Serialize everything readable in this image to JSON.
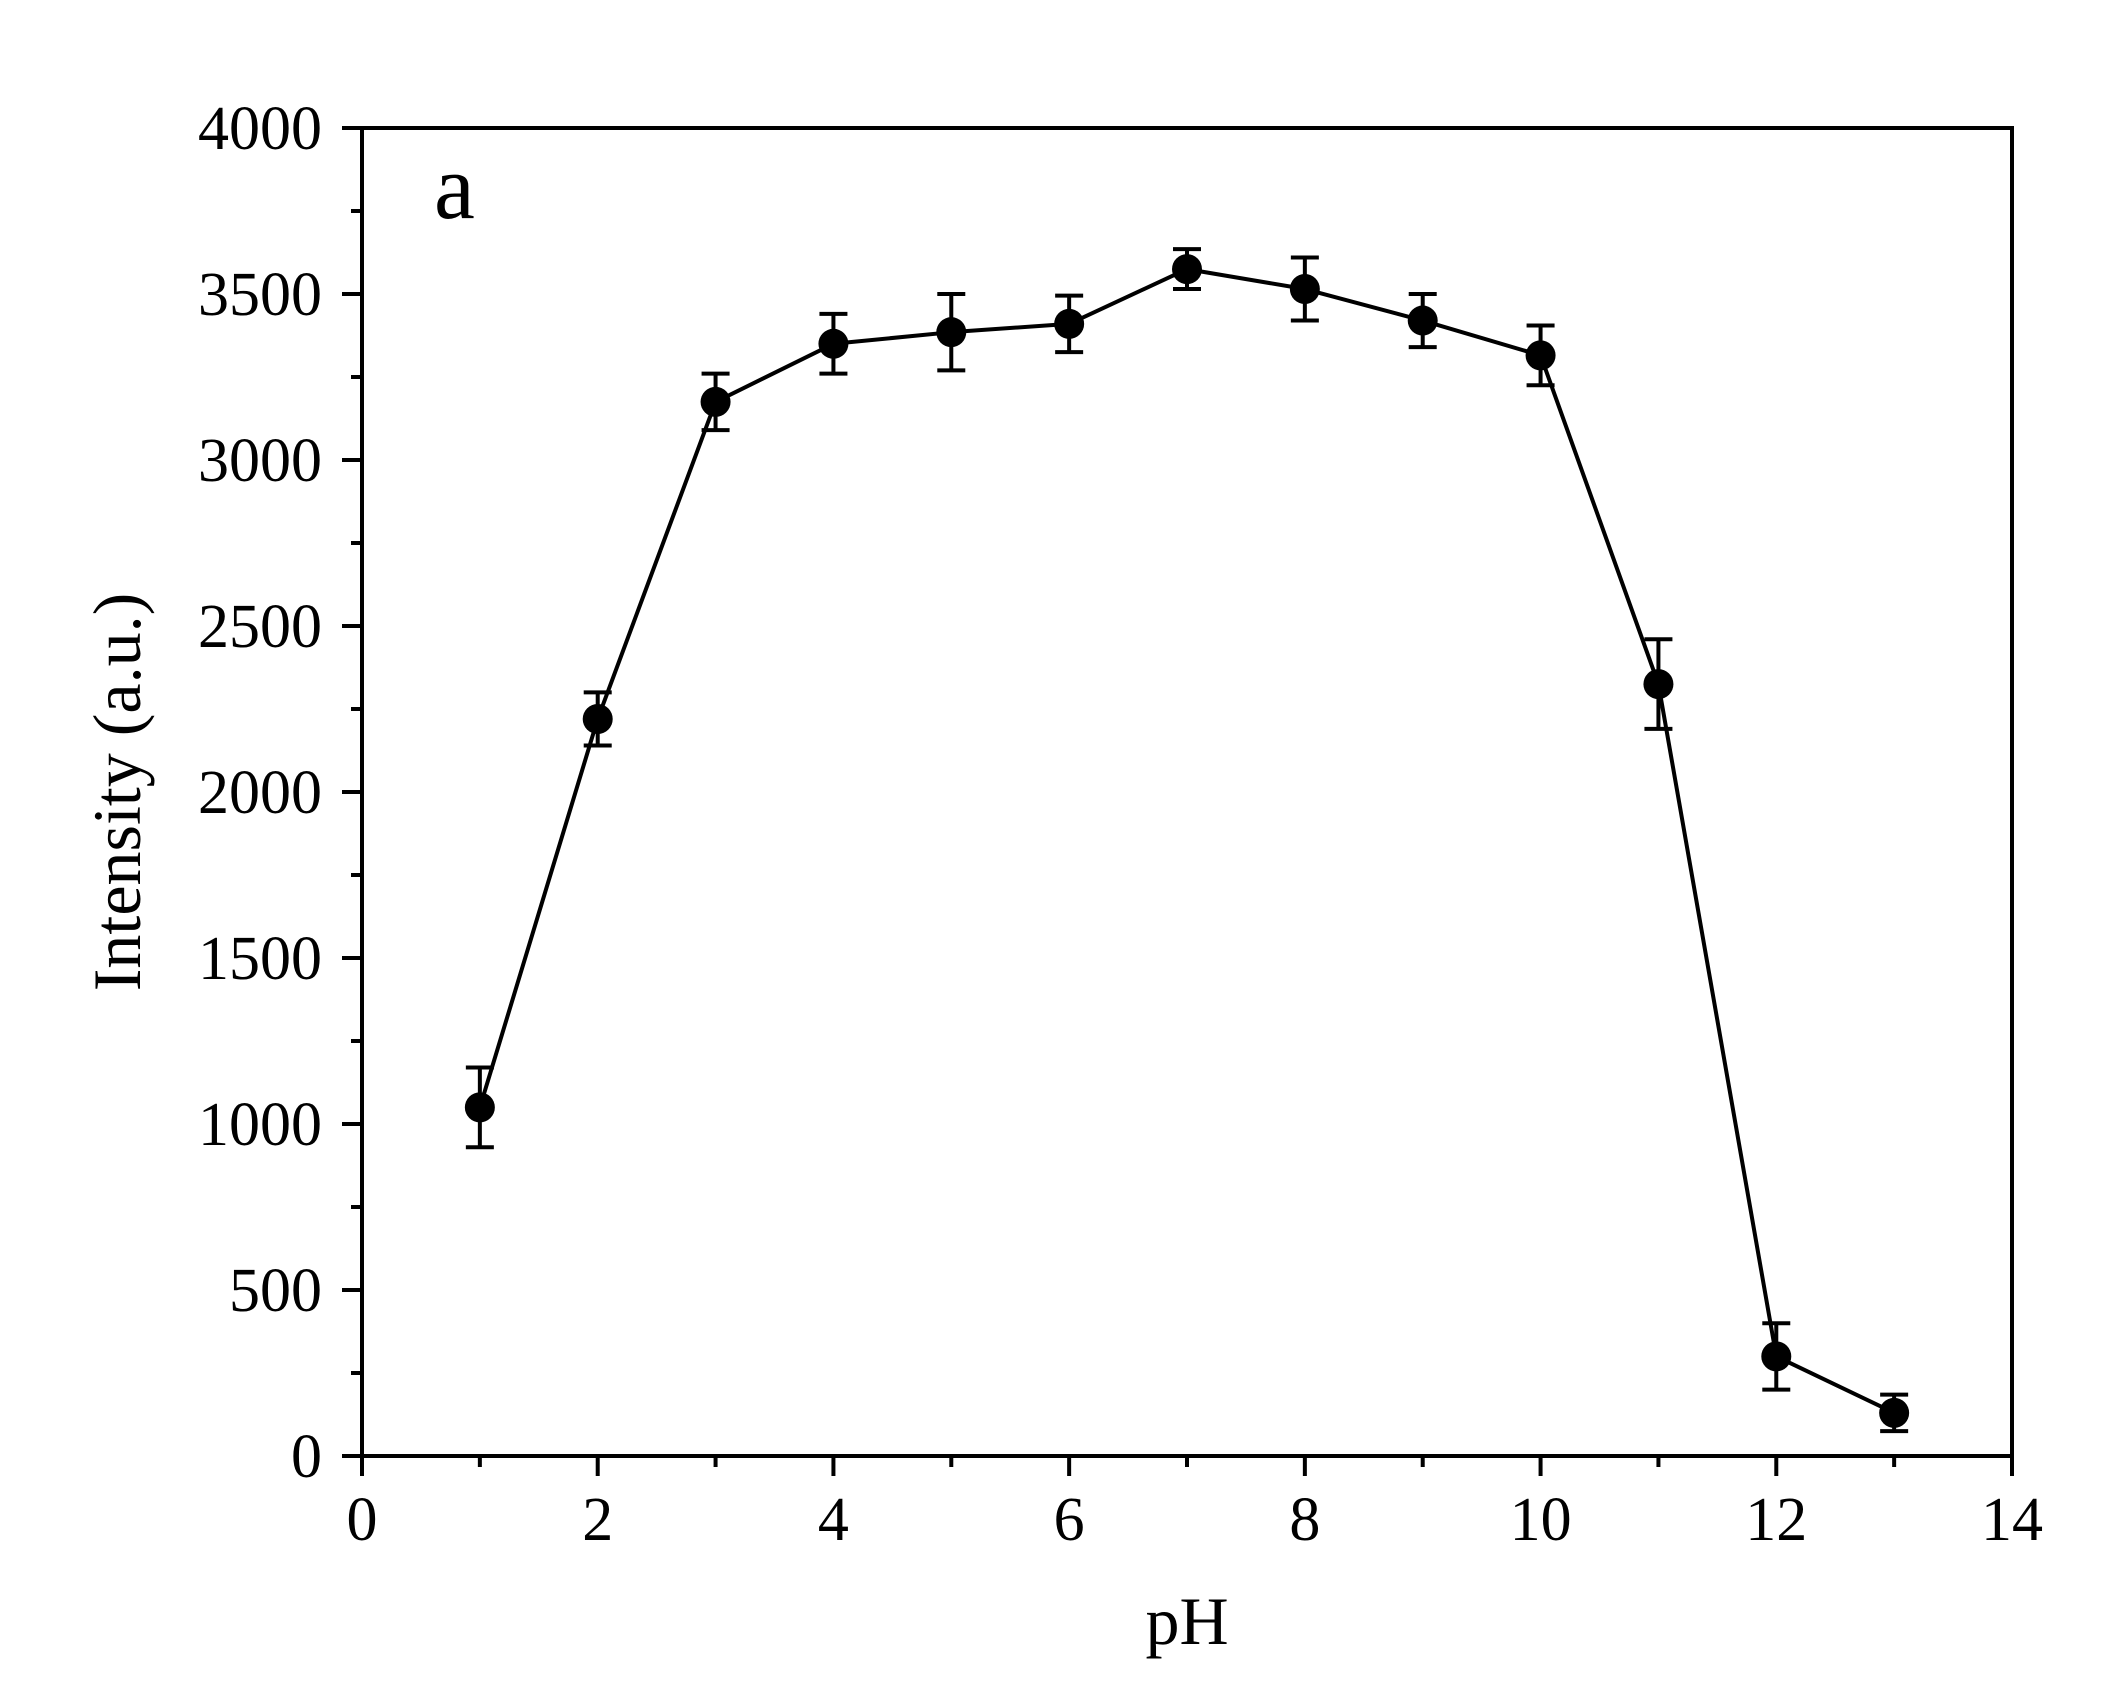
{
  "chart_data": {
    "type": "line",
    "panel_label": "a",
    "title": "",
    "xlabel": "pH",
    "ylabel": "Intensity (a.u.)",
    "xlim": [
      0,
      14
    ],
    "ylim": [
      0,
      4000
    ],
    "x_ticks": [
      0,
      2,
      4,
      6,
      8,
      10,
      12,
      14
    ],
    "y_ticks": [
      0,
      500,
      1000,
      1500,
      2000,
      2500,
      3000,
      3500,
      4000
    ],
    "x_minor_step": 1,
    "y_minor_step": 250,
    "grid": false,
    "legend": "none",
    "series": [
      {
        "marker": "filled-circle",
        "color": "#000000",
        "x": [
          1,
          2,
          3,
          4,
          5,
          6,
          7,
          8,
          9,
          10,
          11,
          12,
          13
        ],
        "y": [
          1050,
          2220,
          3175,
          3350,
          3385,
          3410,
          3575,
          3515,
          3420,
          3315,
          2325,
          300,
          130
        ],
        "y_error": [
          120,
          80,
          85,
          90,
          115,
          85,
          60,
          95,
          80,
          90,
          135,
          100,
          55
        ]
      }
    ]
  }
}
